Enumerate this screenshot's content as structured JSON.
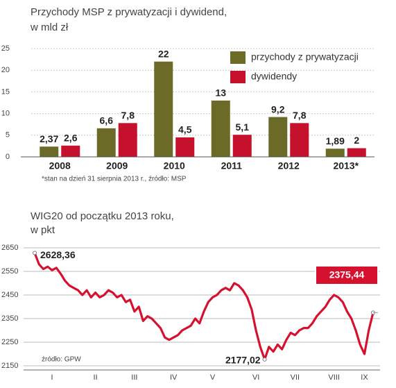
{
  "chart_data": [
    {
      "type": "bar",
      "title": "Przychody MSP z prywatyzacji i dywidend,",
      "subtitle": "w mld zł",
      "categories": [
        "2008",
        "2009",
        "2010",
        "2011",
        "2012",
        "2013*"
      ],
      "series": [
        {
          "name": "przychody z prywatyzacji",
          "color": "#6b6a26",
          "values": [
            2.37,
            6.6,
            22,
            13,
            9.2,
            1.89
          ],
          "value_labels": [
            "2,37",
            "6,6",
            "22",
            "13",
            "9,2",
            "1,89"
          ]
        },
        {
          "name": "dywidendy",
          "color": "#c5112c",
          "values": [
            2.6,
            7.8,
            4.5,
            5.1,
            7.8,
            2
          ],
          "value_labels": [
            "2,6",
            "7,8",
            "4,5",
            "5,1",
            "7,8",
            "2"
          ]
        }
      ],
      "ylim": [
        0,
        25
      ],
      "yticks": [
        0,
        5,
        10,
        15,
        20,
        25
      ],
      "grid": true,
      "legend": "top-right",
      "note": "*stan na dzień 31 sierpnia 2013 r., źródło: MSP"
    },
    {
      "type": "line",
      "title": "WIG20 od początku 2013 roku,",
      "subtitle": "w pkt",
      "categories": [
        null,
        null,
        null,
        null,
        "I",
        null,
        null,
        null,
        null,
        null,
        null,
        null,
        null,
        null,
        "II",
        null,
        null,
        null,
        null,
        null,
        null,
        null,
        null,
        "III",
        null,
        null,
        null,
        null,
        null,
        null,
        null,
        null,
        "IV",
        null,
        null,
        null,
        null,
        null,
        null,
        null,
        null,
        "V",
        null,
        null,
        null,
        null,
        null,
        null,
        null,
        null,
        null,
        "VI",
        null,
        null,
        null,
        null,
        null,
        null,
        null,
        null,
        "VII",
        null,
        null,
        null,
        null,
        null,
        null,
        null,
        null,
        "VIII",
        null,
        null,
        null,
        null,
        null,
        null,
        "IX",
        null,
        null
      ],
      "series": [
        {
          "name": "WIG20",
          "color": "#d5112f",
          "values": [
            2628.36,
            2580,
            2560,
            2570,
            2555,
            2565,
            2540,
            2510,
            2490,
            2480,
            2470,
            2450,
            2470,
            2440,
            2460,
            2440,
            2450,
            2470,
            2460,
            2440,
            2450,
            2420,
            2430,
            2380,
            2400,
            2340,
            2360,
            2350,
            2330,
            2310,
            2270,
            2260,
            2270,
            2280,
            2300,
            2310,
            2320,
            2350,
            2330,
            2380,
            2420,
            2440,
            2450,
            2470,
            2480,
            2470,
            2500,
            2490,
            2470,
            2440,
            2390,
            2300,
            2230,
            2177.02,
            2230,
            2210,
            2240,
            2220,
            2260,
            2290,
            2280,
            2300,
            2310,
            2310,
            2330,
            2360,
            2380,
            2400,
            2430,
            2450,
            2440,
            2420,
            2380,
            2350,
            2300,
            2240,
            2200,
            2300,
            2375.44
          ]
        }
      ],
      "annotations": [
        "2628,36",
        "2177,02",
        "2375,44"
      ],
      "ylim": [
        2150,
        2650
      ],
      "yticks": [
        2150,
        2250,
        2350,
        2450,
        2550,
        2650
      ],
      "grid": true,
      "source": "źródło: GPW"
    }
  ]
}
